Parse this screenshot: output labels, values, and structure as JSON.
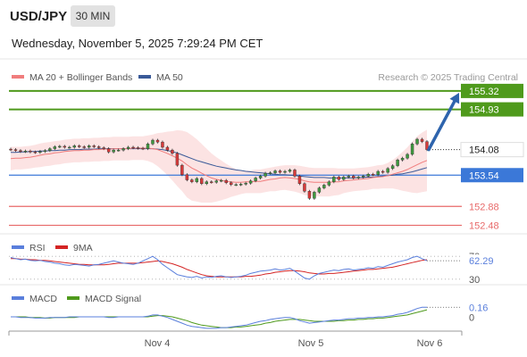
{
  "header": {
    "symbol": "USD/JPY",
    "timeframe": "30 MIN",
    "datetime": "Wednesday, November 5, 2025 7:29:24 PM CET"
  },
  "colors": {
    "ma20": "#f07d7d",
    "bollinger_fill": "#fbdada",
    "ma50": "#3a5a98",
    "resistance": "#4f9a1c",
    "support": "#3b78d8",
    "lower_level": "#e86a6a",
    "arrow": "#2e64ad",
    "rsi": "#5a7fdc",
    "rsi_ma": "#d42424",
    "macd": "#5a7fdc",
    "macd_signal": "#4f9a1c",
    "candle_up": "#3f9a3f",
    "candle_down": "#d83a3a",
    "current_price_box": "#ffffff"
  },
  "chart_data": [
    {
      "type": "line",
      "name": "price-panel",
      "legend": [
        {
          "label": "MA 20 + Bollinger Bands",
          "color_key": "ma20"
        },
        {
          "label": "MA 50",
          "color_key": "ma50"
        }
      ],
      "credit": "Research © 2025 Trading Central",
      "y_range": [
        152.3,
        155.45
      ],
      "levels": [
        {
          "value": 155.32,
          "label": "155.32",
          "kind": "resistance"
        },
        {
          "value": 154.93,
          "label": "154.93",
          "kind": "resistance"
        },
        {
          "value": 153.54,
          "label": "153.54",
          "kind": "support"
        },
        {
          "value": 152.88,
          "label": "152.88",
          "kind": "lower"
        },
        {
          "value": 152.48,
          "label": "152.48",
          "kind": "lower"
        }
      ],
      "current_price": {
        "value": 154.08,
        "label": "154.08"
      },
      "forecast_arrow": {
        "from": 154.08,
        "to": 155.32
      },
      "x_labels": [
        "Nov 4",
        "Nov 5",
        "Nov 6"
      ],
      "x_label_index": [
        28,
        60,
        84
      ],
      "n_bars": 86,
      "close": [
        154.08,
        154.06,
        154.04,
        154.05,
        154.03,
        154.02,
        154.04,
        154.06,
        154.1,
        154.14,
        154.15,
        154.13,
        154.13,
        154.16,
        154.14,
        154.13,
        154.16,
        154.14,
        154.12,
        154.1,
        154.03,
        154.07,
        154.07,
        154.1,
        154.13,
        154.12,
        154.11,
        154.1,
        154.2,
        154.28,
        154.24,
        154.13,
        154.07,
        154.0,
        153.75,
        153.55,
        153.44,
        153.4,
        153.47,
        153.36,
        153.4,
        153.39,
        153.42,
        153.43,
        153.38,
        153.34,
        153.34,
        153.35,
        153.37,
        153.42,
        153.48,
        153.52,
        153.58,
        153.59,
        153.63,
        153.6,
        153.62,
        153.65,
        153.52,
        153.36,
        153.2,
        153.05,
        153.18,
        153.27,
        153.33,
        153.4,
        153.5,
        153.45,
        153.5,
        153.52,
        153.48,
        153.5,
        153.52,
        153.56,
        153.55,
        153.62,
        153.6,
        153.68,
        153.74,
        153.86,
        153.9,
        153.98,
        154.2,
        154.3,
        154.25,
        154.08
      ],
      "ma20": [
        153.89,
        153.9,
        153.9,
        153.91,
        153.92,
        153.94,
        153.96,
        153.98,
        153.99,
        154.01,
        154.02,
        154.04,
        154.05,
        154.06,
        154.06,
        154.07,
        154.07,
        154.08,
        154.08,
        154.09,
        154.09,
        154.1,
        154.1,
        154.1,
        154.1,
        154.11,
        154.11,
        154.11,
        154.11,
        154.1,
        154.08,
        154.04,
        154.0,
        153.95,
        153.9,
        153.84,
        153.76,
        153.69,
        153.64,
        153.58,
        153.53,
        153.48,
        153.45,
        153.43,
        153.41,
        153.4,
        153.39,
        153.39,
        153.4,
        153.4,
        153.41,
        153.41,
        153.43,
        153.45,
        153.46,
        153.48,
        153.49,
        153.48,
        153.47,
        153.45,
        153.42,
        153.4,
        153.39,
        153.39,
        153.39,
        153.39,
        153.4,
        153.4,
        153.42,
        153.43,
        153.44,
        153.45,
        153.46,
        153.47,
        153.49,
        153.5,
        153.51,
        153.53,
        153.56,
        153.59,
        153.62,
        153.66,
        153.71,
        153.76,
        153.81,
        153.85
      ],
      "bb_upper": [
        154.14,
        154.14,
        154.14,
        154.15,
        154.16,
        154.18,
        154.21,
        154.23,
        154.24,
        154.26,
        154.27,
        154.29,
        154.3,
        154.31,
        154.31,
        154.32,
        154.32,
        154.33,
        154.33,
        154.34,
        154.34,
        154.35,
        154.35,
        154.35,
        154.35,
        154.36,
        154.36,
        154.36,
        154.38,
        154.4,
        154.43,
        154.44,
        154.46,
        154.47,
        154.49,
        154.48,
        154.45,
        154.38,
        154.3,
        154.2,
        154.1,
        154.0,
        153.92,
        153.85,
        153.78,
        153.72,
        153.67,
        153.64,
        153.64,
        153.64,
        153.66,
        153.66,
        153.68,
        153.7,
        153.72,
        153.74,
        153.75,
        153.75,
        153.75,
        153.74,
        153.72,
        153.7,
        153.69,
        153.69,
        153.69,
        153.69,
        153.69,
        153.68,
        153.68,
        153.68,
        153.68,
        153.69,
        153.7,
        153.71,
        153.73,
        153.75,
        153.76,
        153.8,
        153.86,
        153.94,
        154.03,
        154.13,
        154.25,
        154.36,
        154.44,
        154.5
      ],
      "bb_lower": [
        153.64,
        153.66,
        153.66,
        153.67,
        153.68,
        153.7,
        153.71,
        153.73,
        153.74,
        153.76,
        153.77,
        153.79,
        153.8,
        153.81,
        153.81,
        153.82,
        153.82,
        153.83,
        153.83,
        153.84,
        153.84,
        153.85,
        153.85,
        153.85,
        153.85,
        153.86,
        153.86,
        153.86,
        153.84,
        153.8,
        153.73,
        153.64,
        153.54,
        153.43,
        153.31,
        153.2,
        153.07,
        153.0,
        152.98,
        152.96,
        152.96,
        152.96,
        152.98,
        153.01,
        153.04,
        153.08,
        153.11,
        153.14,
        153.16,
        153.16,
        153.16,
        153.16,
        153.18,
        153.2,
        153.2,
        153.22,
        153.23,
        153.21,
        153.19,
        153.16,
        153.12,
        153.1,
        153.09,
        153.09,
        153.09,
        153.09,
        153.11,
        153.12,
        153.16,
        153.18,
        153.2,
        153.21,
        153.22,
        153.23,
        153.25,
        153.25,
        153.26,
        153.26,
        153.26,
        153.24,
        153.21,
        153.19,
        153.17,
        153.16,
        153.18,
        153.2
      ],
      "ma50": [
        154.02,
        154.02,
        154.03,
        154.03,
        154.04,
        154.04,
        154.05,
        154.05,
        154.06,
        154.06,
        154.07,
        154.07,
        154.08,
        154.08,
        154.08,
        154.09,
        154.09,
        154.09,
        154.1,
        154.1,
        154.1,
        154.1,
        154.1,
        154.1,
        154.1,
        154.1,
        154.1,
        154.1,
        154.1,
        154.1,
        154.09,
        154.08,
        154.06,
        154.04,
        154.01,
        153.97,
        153.93,
        153.89,
        153.85,
        153.82,
        153.79,
        153.76,
        153.73,
        153.71,
        153.69,
        153.67,
        153.65,
        153.64,
        153.62,
        153.61,
        153.6,
        153.59,
        153.58,
        153.57,
        153.56,
        153.55,
        153.55,
        153.54,
        153.53,
        153.52,
        153.51,
        153.5,
        153.49,
        153.49,
        153.49,
        153.48,
        153.48,
        153.48,
        153.48,
        153.48,
        153.48,
        153.49,
        153.49,
        153.5,
        153.5,
        153.51,
        153.52,
        153.53,
        153.54,
        153.56,
        153.57,
        153.59,
        153.61,
        153.64,
        153.67,
        153.7
      ]
    },
    {
      "type": "line",
      "name": "rsi-panel",
      "legend": [
        {
          "label": "RSI",
          "color_key": "rsi"
        },
        {
          "label": "9MA",
          "color_key": "rsi_ma"
        }
      ],
      "y_range": [
        25,
        75
      ],
      "tick_labels": [
        "70",
        "30"
      ],
      "tick_values": [
        70,
        30
      ],
      "current_value_label": "62.29",
      "current_value": 62.29,
      "rsi": [
        68,
        66,
        64,
        65,
        63,
        62,
        63,
        61,
        60,
        58,
        57,
        55,
        54,
        56,
        55,
        54,
        53,
        55,
        56,
        58,
        60,
        62,
        60,
        58,
        57,
        56,
        58,
        62,
        66,
        70,
        64,
        56,
        50,
        44,
        38,
        36,
        34,
        33,
        35,
        32,
        34,
        33,
        35,
        36,
        34,
        33,
        34,
        35,
        37,
        40,
        42,
        44,
        45,
        46,
        48,
        46,
        47,
        49,
        44,
        38,
        32,
        30,
        36,
        40,
        42,
        44,
        46,
        45,
        47,
        48,
        46,
        47,
        48,
        50,
        49,
        52,
        51,
        54,
        57,
        60,
        62,
        64,
        68,
        70,
        66,
        62.29
      ],
      "ma": [
        66,
        66,
        65,
        65,
        64,
        64,
        63,
        63,
        62,
        61,
        60,
        59,
        58,
        57,
        56,
        56,
        55,
        55,
        55,
        55,
        56,
        57,
        58,
        58,
        58,
        58,
        58,
        59,
        60,
        61,
        62,
        61,
        59,
        57,
        54,
        51,
        47,
        44,
        41,
        38,
        36,
        35,
        34,
        34,
        34,
        34,
        34,
        34,
        35,
        35,
        36,
        37,
        39,
        40,
        42,
        43,
        44,
        45,
        45,
        44,
        43,
        41,
        40,
        39,
        39,
        40,
        40,
        41,
        42,
        43,
        44,
        45,
        46,
        47,
        47,
        48,
        49,
        50,
        51,
        53,
        55,
        57,
        59,
        61,
        63,
        64
      ]
    },
    {
      "type": "line",
      "name": "macd-panel",
      "legend": [
        {
          "label": "MACD",
          "color_key": "macd"
        },
        {
          "label": "MACD Signal",
          "color_key": "macd_signal"
        }
      ],
      "y_range": [
        -0.2,
        0.22
      ],
      "tick_labels": [
        "0"
      ],
      "tick_values": [
        0
      ],
      "current_value_label": "0.16",
      "current_value": 0.16,
      "macd": [
        0.01,
        0.01,
        0.0,
        0.0,
        0.0,
        -0.01,
        -0.01,
        -0.01,
        0.0,
        0.0,
        0.0,
        0.0,
        0.01,
        0.01,
        0.01,
        0.01,
        0.01,
        0.01,
        0.01,
        0.01,
        0.0,
        0.0,
        0.01,
        0.01,
        0.01,
        0.01,
        0.01,
        0.01,
        0.02,
        0.04,
        0.04,
        0.02,
        0.0,
        -0.03,
        -0.06,
        -0.09,
        -0.12,
        -0.14,
        -0.15,
        -0.16,
        -0.17,
        -0.17,
        -0.17,
        -0.16,
        -0.16,
        -0.15,
        -0.14,
        -0.13,
        -0.12,
        -0.1,
        -0.08,
        -0.06,
        -0.05,
        -0.03,
        -0.02,
        -0.01,
        0.0,
        0.0,
        -0.02,
        -0.05,
        -0.07,
        -0.09,
        -0.08,
        -0.07,
        -0.06,
        -0.05,
        -0.04,
        -0.04,
        -0.03,
        -0.02,
        -0.02,
        -0.01,
        -0.01,
        0.0,
        0.0,
        0.01,
        0.01,
        0.02,
        0.03,
        0.05,
        0.06,
        0.08,
        0.11,
        0.14,
        0.16,
        0.16
      ],
      "signal": [
        0.01,
        0.01,
        0.01,
        0.01,
        0.0,
        0.0,
        0.0,
        -0.01,
        -0.01,
        0.0,
        0.0,
        0.0,
        0.0,
        0.0,
        0.01,
        0.01,
        0.01,
        0.01,
        0.01,
        0.01,
        0.01,
        0.01,
        0.01,
        0.01,
        0.01,
        0.01,
        0.01,
        0.01,
        0.01,
        0.02,
        0.03,
        0.03,
        0.02,
        0.01,
        -0.01,
        -0.03,
        -0.05,
        -0.08,
        -0.1,
        -0.12,
        -0.13,
        -0.14,
        -0.15,
        -0.16,
        -0.16,
        -0.16,
        -0.15,
        -0.15,
        -0.14,
        -0.13,
        -0.12,
        -0.11,
        -0.09,
        -0.08,
        -0.06,
        -0.05,
        -0.04,
        -0.03,
        -0.03,
        -0.03,
        -0.04,
        -0.05,
        -0.06,
        -0.06,
        -0.06,
        -0.06,
        -0.06,
        -0.05,
        -0.05,
        -0.04,
        -0.04,
        -0.03,
        -0.03,
        -0.02,
        -0.02,
        -0.01,
        -0.01,
        0.0,
        0.01,
        0.02,
        0.03,
        0.04,
        0.06,
        0.08,
        0.1,
        0.12
      ]
    }
  ]
}
